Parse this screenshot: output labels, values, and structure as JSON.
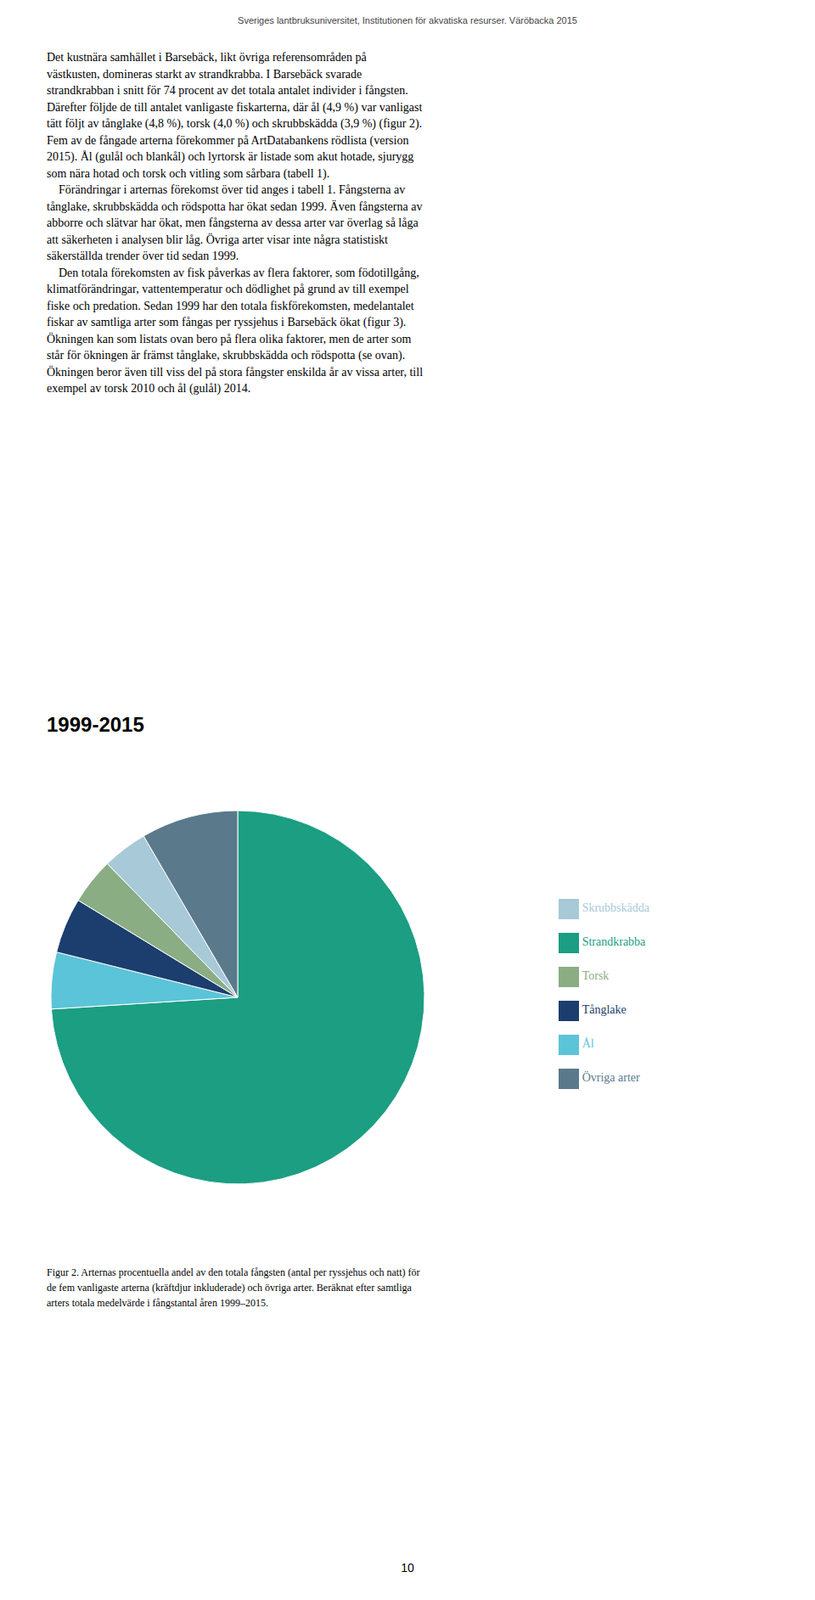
{
  "header": "Sveriges lantbruksuniversitet, Institutionen för akvatiska resurser. Väröbacka 2015",
  "body_lines": [
    "Det kustnära samhället i Barsebäck, likt övriga referensområden på",
    "västkusten, domineras starkt av strandkrabba. I Barsebäck svarade",
    "strandkrabban i snitt för 74 procent av det totala antalet individer i fångsten.",
    "Därefter följde de till antalet vanligaste fiskarterna, där ål (4,9 %) var vanligast",
    "tätt följt av tånglake (4,8 %), torsk (4,0 %) och skrubbskädda (3,9 %) (figur 2).",
    "Fem av de fångade arterna förekommer på ArtDatabankens rödlista (version",
    "2015). Ål (gulål och blankål) och lyrtorsk är listade som akut hotade, sjurygg",
    "som nära hotad och torsk och vitling som sårbara (tabell 1).",
    "    Förändringar i arternas förekomst över tid anges i tabell 1. Fångsterna av",
    "tånglake, skrubbskädda och rödspotta har ökat sedan 1999. Även fångsterna av",
    "abborre och slätvar har ökat, men fångsterna av dessa arter var överlag så låga",
    "att säkerheten i analysen blir låg. Övriga arter visar inte några statistiskt",
    "säkerställda trender över tid sedan 1999.",
    "    Den totala förekomsten av fisk påverkas av flera faktorer, som födotillgång,",
    "klimatförändringar, vattentemperatur och dödlighet på grund av till exempel",
    "fiske och predation. Sedan 1999 har den totala fiskförekomsten, medelantalet",
    "fiskar av samtliga arter som fångas per ryssjehus i Barsebäck ökat (figur 3).",
    "Ökningen kan som listats ovan bero på flera olika faktorer, men de arter som",
    "står för ökningen är främst tånglake, skrubbskädda och rödspotta (se ovan).",
    "Ökningen beror även till viss del på stora fångster enskilda år av vissa arter, till",
    "exempel av torsk 2010 och ål (gulål) 2014."
  ],
  "caption_lines": [
    "Figur 2. Arternas procentuella andel av den totala fångsten (antal per ryssjehus och natt) för",
    "de fem vanligaste arterna (kräftdjur inkluderade) och övriga arter. Beräknat efter samtliga",
    "arters totala medelvärde i fångstantal åren 1999–2015."
  ],
  "page_number": "10",
  "chart_data": {
    "type": "pie",
    "title": "1999-2015",
    "categories": [
      "Strandkrabba",
      "Ål",
      "Tånglake",
      "Torsk",
      "Skrubbskädda",
      "Övriga arter"
    ],
    "values": [
      74.0,
      4.9,
      4.8,
      4.0,
      3.9,
      8.4
    ],
    "colors": [
      "#1b9e82",
      "#5bc4d8",
      "#1b3e6e",
      "#8aad84",
      "#a8c9d8",
      "#5a7a8c"
    ],
    "legend": "right"
  }
}
